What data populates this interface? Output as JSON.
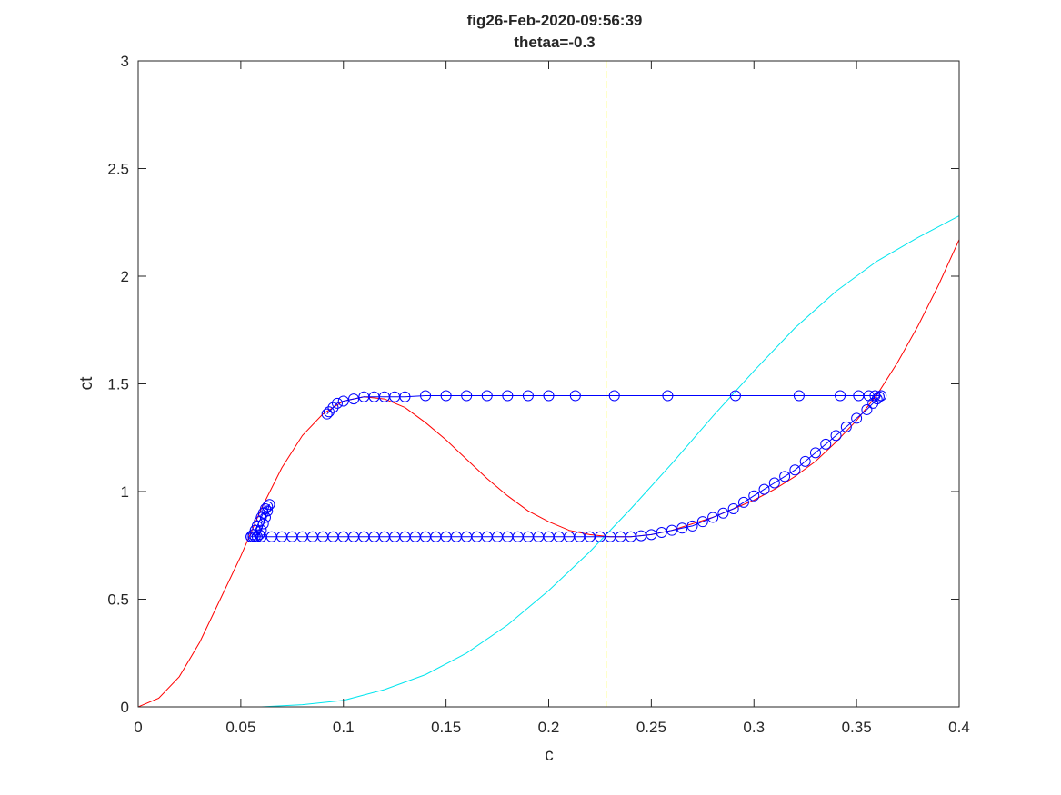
{
  "chart_data": {
    "type": "line",
    "title": "fig26-Feb-2020-09:56:39",
    "subtitle": "thetaa=-0.3",
    "xlabel": "c",
    "ylabel": "ct",
    "xlim": [
      0,
      0.4
    ],
    "ylim": [
      0,
      3
    ],
    "xticks": [
      0,
      0.05,
      0.1,
      0.15,
      0.2,
      0.25,
      0.3,
      0.35,
      0.4
    ],
    "xtick_labels": [
      "0",
      "0.05",
      "0.1",
      "0.15",
      "0.2",
      "0.25",
      "0.3",
      "0.35",
      "0.4"
    ],
    "yticks": [
      0,
      0.5,
      1,
      1.5,
      2,
      2.5,
      3
    ],
    "ytick_labels": [
      "0",
      "0.5",
      "1",
      "1.5",
      "2",
      "2.5",
      "3"
    ],
    "grid": false,
    "series": [
      {
        "style": "line",
        "color": "#ff0000",
        "x": [
          0,
          0.01,
          0.02,
          0.03,
          0.04,
          0.05,
          0.06,
          0.07,
          0.08,
          0.09,
          0.1,
          0.11,
          0.12,
          0.13,
          0.14,
          0.15,
          0.16,
          0.17,
          0.18,
          0.19,
          0.2,
          0.21,
          0.22,
          0.23,
          0.24,
          0.25,
          0.26,
          0.27,
          0.28,
          0.29,
          0.3,
          0.31,
          0.32,
          0.33,
          0.34,
          0.35,
          0.36,
          0.37,
          0.38,
          0.39,
          0.4
        ],
        "y": [
          0.0,
          0.04,
          0.14,
          0.3,
          0.5,
          0.7,
          0.92,
          1.11,
          1.26,
          1.36,
          1.42,
          1.44,
          1.43,
          1.39,
          1.32,
          1.24,
          1.15,
          1.06,
          0.98,
          0.91,
          0.86,
          0.82,
          0.8,
          0.79,
          0.79,
          0.8,
          0.82,
          0.85,
          0.88,
          0.92,
          0.96,
          1.01,
          1.07,
          1.14,
          1.23,
          1.33,
          1.45,
          1.6,
          1.77,
          1.96,
          2.17
        ]
      },
      {
        "style": "line",
        "color": "#00e5ee",
        "x": [
          0,
          0.02,
          0.04,
          0.06,
          0.08,
          0.1,
          0.12,
          0.14,
          0.16,
          0.18,
          0.2,
          0.22,
          0.24,
          0.26,
          0.28,
          0.3,
          0.32,
          0.34,
          0.36,
          0.38,
          0.4
        ],
        "y": [
          0.0,
          0.0,
          0.0,
          0.0,
          0.01,
          0.03,
          0.08,
          0.15,
          0.25,
          0.38,
          0.54,
          0.72,
          0.92,
          1.13,
          1.35,
          1.56,
          1.76,
          1.93,
          2.07,
          2.18,
          2.28
        ]
      },
      {
        "style": "vline",
        "color": "#ffff00",
        "x": 0.228
      },
      {
        "style": "line+markers",
        "color": "#0000ff",
        "x": [
          0.055,
          0.056,
          0.057,
          0.058,
          0.059,
          0.06,
          0.061,
          0.062,
          0.063,
          0.064,
          0.063,
          0.062,
          0.061,
          0.06,
          0.059,
          0.058,
          0.057,
          0.056,
          0.055,
          0.06,
          0.065,
          0.07,
          0.075,
          0.08,
          0.085,
          0.09,
          0.095,
          0.1,
          0.105,
          0.11,
          0.115,
          0.12,
          0.125,
          0.13,
          0.135,
          0.14,
          0.145,
          0.15,
          0.155,
          0.16,
          0.165,
          0.17,
          0.175,
          0.18,
          0.185,
          0.19,
          0.195,
          0.2,
          0.205,
          0.21,
          0.215,
          0.22,
          0.225,
          0.23,
          0.235,
          0.24,
          0.245,
          0.25,
          0.255,
          0.26,
          0.265,
          0.27,
          0.275,
          0.28,
          0.285,
          0.29,
          0.295,
          0.3,
          0.305,
          0.31,
          0.315,
          0.32,
          0.325,
          0.33,
          0.335,
          0.34,
          0.345,
          0.35,
          0.355,
          0.358,
          0.36,
          0.361,
          0.362,
          0.359,
          0.356,
          0.351,
          0.342,
          0.322,
          0.291,
          0.258,
          0.232,
          0.213,
          0.2,
          0.19,
          0.18,
          0.17,
          0.16,
          0.15,
          0.14,
          0.13,
          0.125,
          0.12,
          0.115,
          0.11,
          0.105,
          0.1,
          0.097,
          0.095,
          0.093,
          0.092
        ],
        "y": [
          0.79,
          0.8,
          0.82,
          0.84,
          0.86,
          0.88,
          0.9,
          0.92,
          0.93,
          0.94,
          0.91,
          0.88,
          0.85,
          0.82,
          0.8,
          0.79,
          0.79,
          0.79,
          0.79,
          0.79,
          0.79,
          0.79,
          0.79,
          0.79,
          0.79,
          0.79,
          0.79,
          0.79,
          0.79,
          0.79,
          0.79,
          0.79,
          0.79,
          0.79,
          0.79,
          0.79,
          0.79,
          0.79,
          0.79,
          0.79,
          0.79,
          0.79,
          0.79,
          0.79,
          0.79,
          0.79,
          0.79,
          0.79,
          0.79,
          0.79,
          0.79,
          0.79,
          0.79,
          0.79,
          0.79,
          0.79,
          0.795,
          0.8,
          0.81,
          0.82,
          0.83,
          0.84,
          0.86,
          0.88,
          0.9,
          0.92,
          0.95,
          0.98,
          1.01,
          1.04,
          1.07,
          1.1,
          1.14,
          1.18,
          1.22,
          1.26,
          1.3,
          1.34,
          1.38,
          1.41,
          1.43,
          1.44,
          1.445,
          1.445,
          1.445,
          1.445,
          1.445,
          1.445,
          1.445,
          1.445,
          1.445,
          1.445,
          1.445,
          1.445,
          1.445,
          1.445,
          1.445,
          1.445,
          1.445,
          1.44,
          1.44,
          1.44,
          1.44,
          1.44,
          1.43,
          1.42,
          1.41,
          1.39,
          1.37,
          1.36
        ]
      }
    ]
  }
}
